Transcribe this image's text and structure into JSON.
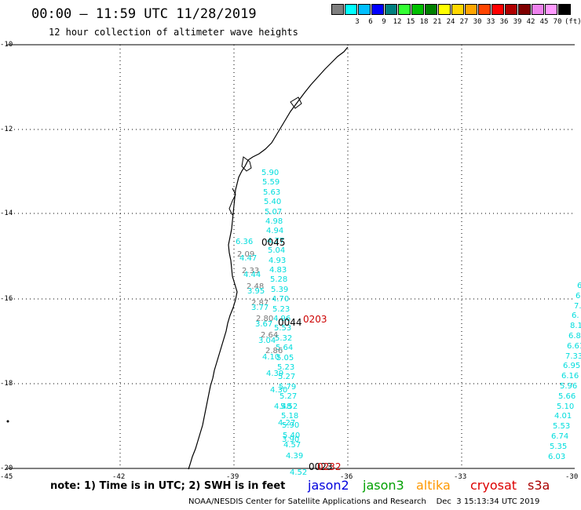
{
  "header": {
    "title": "00:00 – 11:59 UTC 11/28/2019",
    "subtitle": "12 hour collection of altimeter wave heights"
  },
  "legend": {
    "colors": [
      "#7f7f7f",
      "#00ffff",
      "#00bfff",
      "#0000ff",
      "#008080",
      "#33ff33",
      "#00c000",
      "#008000",
      "#ffff00",
      "#ffd700",
      "#ffa500",
      "#ff4500",
      "#ff0000",
      "#b00000",
      "#800000",
      "#ee82ee",
      "#ff99ff",
      "#000000"
    ],
    "labels": [
      "",
      "3",
      "6",
      "9",
      "12",
      "15",
      "18",
      "21",
      "24",
      "27",
      "30",
      "33",
      "36",
      "39",
      "42",
      "45",
      "70",
      "(ft)"
    ]
  },
  "axes": {
    "lat_labels": [
      "-10",
      "-12",
      "-14",
      "-16",
      "-18",
      "-20"
    ],
    "lon_labels": [
      "-45",
      "-42",
      "-39",
      "-36",
      "-33",
      "-30"
    ]
  },
  "tracks": [
    {
      "name": "track-a",
      "color": "#00dddd",
      "values": [
        "5.90",
        "5.59",
        "5.63",
        "5.40",
        "5.07",
        "4.98",
        "4.94",
        "4.77",
        "5.04",
        "4.93",
        "4.83",
        "5.28",
        "5.39",
        "4.70",
        "5.23",
        "4.96",
        "5.53",
        "5.32",
        "5.64",
        "5.05",
        "5.23",
        "5.27",
        "5.79",
        "5.27",
        "5.52",
        "5.18",
        "5.90",
        "5.40",
        "4.57"
      ]
    },
    {
      "name": "track-b-near",
      "color": "#777777",
      "values": [
        "2.09",
        "2.33",
        "2.48",
        "2.87",
        "2.80",
        "2.64",
        "2.86"
      ]
    },
    {
      "name": "track-b-cyan",
      "color": "#00dddd",
      "values": [
        "6.36",
        "4.47",
        "4.44",
        "3.95",
        "3.77",
        "3.67",
        "3.04",
        "4.10",
        "4.39",
        "4.30",
        "4.48",
        "4.27",
        "3.90",
        "4.39",
        "4.52"
      ]
    },
    {
      "name": "track-c",
      "color": "#00dddd",
      "values": [
        "6",
        "6",
        "7.",
        "6.",
        "8.1",
        "6.8",
        "6.61",
        "7.33",
        "6.95",
        "6.16",
        "5.96",
        "5.66",
        "5.10",
        "4.01",
        "5.53",
        "6.74",
        "5.35",
        "6.03"
      ]
    }
  ],
  "times": [
    {
      "label": "0045",
      "color": "#000000"
    },
    {
      "label": "0044",
      "color": "#000000"
    },
    {
      "label": "0203",
      "color": "#cc0000"
    },
    {
      "label": "0023",
      "color": "#000000"
    },
    {
      "label": "0232",
      "color": "#cc0000"
    }
  ],
  "footer": {
    "note": "note:  1) Time is in UTC;  2) SWH is in feet",
    "satellites": [
      {
        "label": "jason2",
        "color": "#0000dd"
      },
      {
        "label": "jason3",
        "color": "#00a000"
      },
      {
        "label": "altika",
        "color": "#ff9900"
      },
      {
        "label": "cryosat",
        "color": "#dd0000"
      },
      {
        "label": "s3a",
        "color": "#aa0000"
      }
    ],
    "credit": "NOAA/NESDIS Center for Satellite Applications and Research    Dec  3 15:13:34 UTC 2019"
  }
}
